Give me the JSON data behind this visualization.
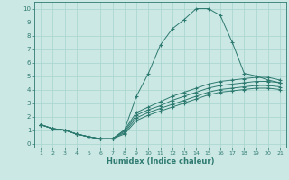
{
  "xlabel": "Humidex (Indice chaleur)",
  "xlim": [
    0.5,
    21.5
  ],
  "ylim": [
    -0.3,
    10.5
  ],
  "xticks": [
    1,
    2,
    3,
    4,
    5,
    6,
    7,
    8,
    9,
    10,
    11,
    12,
    13,
    14,
    15,
    16,
    17,
    18,
    19,
    20,
    21
  ],
  "yticks": [
    0,
    1,
    2,
    3,
    4,
    5,
    6,
    7,
    8,
    9,
    10
  ],
  "bg_color": "#cce8e4",
  "line_color": "#2d7a70",
  "grid_color": "#a8d4ce",
  "lines": [
    {
      "x": [
        1,
        2,
        3,
        4,
        5,
        6,
        7,
        8,
        9,
        10,
        11,
        12,
        13,
        14,
        15,
        16,
        17,
        18,
        19,
        20,
        21
      ],
      "y": [
        1.4,
        1.1,
        1.0,
        0.7,
        0.5,
        0.35,
        0.35,
        1.0,
        3.5,
        5.2,
        7.3,
        8.5,
        9.2,
        10.0,
        10.0,
        9.5,
        7.5,
        5.2,
        5.0,
        4.7,
        4.5
      ]
    },
    {
      "x": [
        1,
        2,
        3,
        4,
        5,
        6,
        7,
        8,
        9,
        10,
        11,
        12,
        13,
        14,
        15,
        16,
        17,
        18,
        19,
        20,
        21
      ],
      "y": [
        1.4,
        1.1,
        1.0,
        0.7,
        0.5,
        0.35,
        0.35,
        1.0,
        2.3,
        2.7,
        3.1,
        3.5,
        3.8,
        4.1,
        4.4,
        4.6,
        4.7,
        4.8,
        4.9,
        4.9,
        4.7
      ]
    },
    {
      "x": [
        1,
        2,
        3,
        4,
        5,
        6,
        7,
        8,
        9,
        10,
        11,
        12,
        13,
        14,
        15,
        16,
        17,
        18,
        19,
        20,
        21
      ],
      "y": [
        1.4,
        1.1,
        1.0,
        0.7,
        0.5,
        0.35,
        0.35,
        0.9,
        2.1,
        2.5,
        2.8,
        3.2,
        3.5,
        3.8,
        4.1,
        4.3,
        4.4,
        4.5,
        4.6,
        4.6,
        4.5
      ]
    },
    {
      "x": [
        1,
        2,
        3,
        4,
        5,
        6,
        7,
        8,
        9,
        10,
        11,
        12,
        13,
        14,
        15,
        16,
        17,
        18,
        19,
        20,
        21
      ],
      "y": [
        1.4,
        1.1,
        1.0,
        0.7,
        0.5,
        0.35,
        0.35,
        0.8,
        1.9,
        2.3,
        2.6,
        2.9,
        3.2,
        3.5,
        3.8,
        4.0,
        4.1,
        4.2,
        4.3,
        4.3,
        4.2
      ]
    },
    {
      "x": [
        1,
        2,
        3,
        4,
        5,
        6,
        7,
        8,
        9,
        10,
        11,
        12,
        13,
        14,
        15,
        16,
        17,
        18,
        19,
        20,
        21
      ],
      "y": [
        1.4,
        1.1,
        1.0,
        0.7,
        0.5,
        0.35,
        0.35,
        0.7,
        1.7,
        2.1,
        2.4,
        2.7,
        3.0,
        3.3,
        3.6,
        3.8,
        3.9,
        4.0,
        4.1,
        4.1,
        4.0
      ]
    }
  ]
}
